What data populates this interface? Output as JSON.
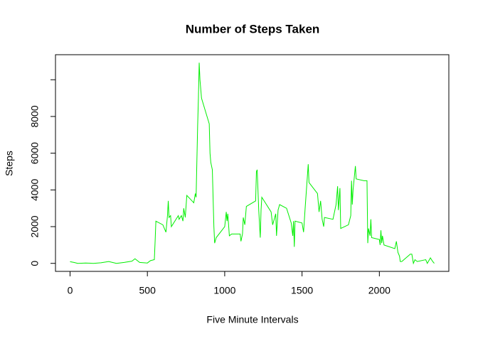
{
  "chart_data": {
    "type": "line",
    "title": "Number of Steps Taken",
    "x_label": "Five Minute Intervals",
    "y_label": "Steps",
    "xlim": [
      -94.2,
      2449.2
    ],
    "ylim": [
      -437.08,
      11364.08
    ],
    "xticks": [
      0,
      500,
      1000,
      1500,
      2000
    ],
    "yticks": [
      0,
      2000,
      4000,
      6000,
      8000,
      {
        "value": 10000,
        "label": null
      }
    ],
    "x": [
      0,
      25,
      50,
      100,
      150,
      200,
      250,
      300,
      350,
      400,
      420,
      450,
      500,
      520,
      545,
      550,
      555,
      600,
      620,
      630,
      635,
      640,
      650,
      655,
      700,
      705,
      720,
      730,
      735,
      745,
      755,
      800,
      810,
      815,
      825,
      830,
      835,
      840,
      850,
      900,
      905,
      910,
      920,
      930,
      935,
      945,
      1000,
      1010,
      1015,
      1020,
      1030,
      1045,
      1100,
      1105,
      1115,
      1120,
      1130,
      1140,
      1200,
      1205,
      1210,
      1220,
      1230,
      1235,
      1240,
      1300,
      1310,
      1330,
      1335,
      1345,
      1355,
      1400,
      1430,
      1440,
      1445,
      1450,
      1455,
      1500,
      1510,
      1520,
      1540,
      1545,
      1600,
      1610,
      1620,
      1630,
      1640,
      1645,
      1700,
      1720,
      1730,
      1735,
      1745,
      1750,
      1800,
      1815,
      1820,
      1825,
      1830,
      1845,
      1850,
      1900,
      1920,
      1925,
      1930,
      1940,
      1945,
      1950,
      2000,
      2005,
      2010,
      2015,
      2020,
      2030,
      2100,
      2110,
      2120,
      2130,
      2135,
      2145,
      2200,
      2210,
      2220,
      2230,
      2245,
      2300,
      2310,
      2330,
      2345,
      2355
    ],
    "series": [
      {
        "name": "Steps",
        "color": "#00ee00",
        "values": [
          91,
          50,
          0,
          20,
          0,
          30,
          100,
          0,
          50,
          120,
          250,
          50,
          20,
          150,
          200,
          1200,
          2300,
          2100,
          1700,
          2600,
          3400,
          2500,
          2600,
          2000,
          2600,
          2400,
          2600,
          2300,
          3000,
          2500,
          3700,
          3300,
          3800,
          3600,
          7500,
          9000,
          10927,
          10000,
          9000,
          7600,
          6000,
          5500,
          5100,
          2000,
          1100,
          1400,
          2000,
          2800,
          2300,
          2700,
          1500,
          1600,
          1600,
          1200,
          1600,
          2500,
          2100,
          3100,
          3400,
          5000,
          5100,
          2900,
          1400,
          2900,
          3600,
          2800,
          2100,
          2700,
          1500,
          2900,
          3200,
          3000,
          2200,
          1500,
          2300,
          900,
          2300,
          2200,
          1700,
          3000,
          5400,
          4400,
          3800,
          2800,
          3400,
          2400,
          2000,
          2500,
          2400,
          3200,
          4200,
          2900,
          4100,
          1900,
          2100,
          2600,
          4500,
          3200,
          4000,
          5300,
          4600,
          4500,
          4500,
          1100,
          1900,
          1500,
          2400,
          1400,
          1300,
          1000,
          1800,
          1100,
          1500,
          1000,
          800,
          1200,
          600,
          400,
          100,
          100,
          500,
          500,
          0,
          200,
          100,
          200,
          0,
          300,
          100,
          0
        ]
      }
    ]
  }
}
